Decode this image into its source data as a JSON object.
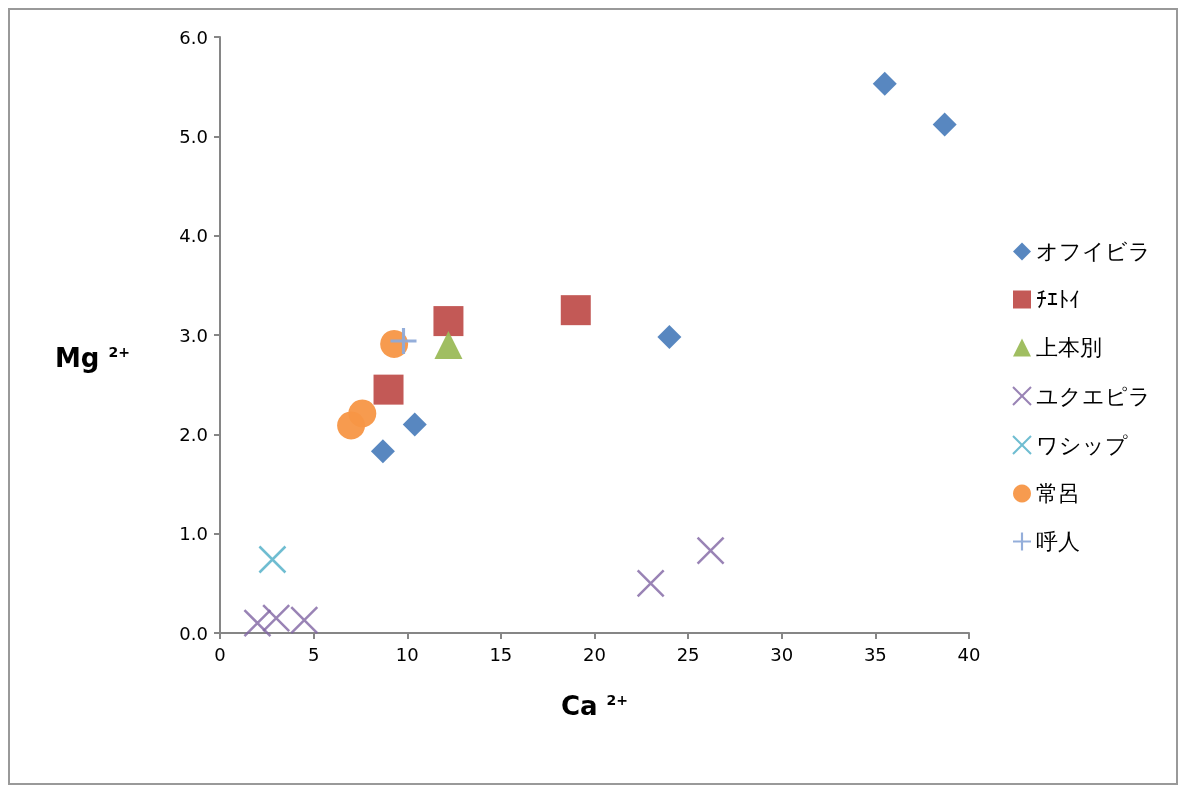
{
  "chart_data": {
    "type": "scatter",
    "xlabel": "Ca $^{2+}$",
    "ylabel": "Mg $^{2+}$",
    "xlim": [
      0,
      40
    ],
    "xticks": [
      0,
      5,
      10,
      15,
      20,
      25,
      30,
      35,
      40
    ],
    "ylim": [
      0,
      6
    ],
    "yticks": [
      {
        "value": 0,
        "label": "0.0"
      },
      {
        "value": 1,
        "label": "1.0"
      },
      {
        "value": 2,
        "label": "2.0"
      },
      {
        "value": 3,
        "label": "3.0"
      },
      {
        "value": 4,
        "label": "4.0"
      },
      {
        "value": 5,
        "label": "5.0"
      },
      {
        "value": 6,
        "label": "6.0"
      }
    ],
    "grid": false,
    "legend": "right",
    "series": [
      {
        "name": "オフイビラ",
        "color": "#4f81bd",
        "marker": "diamond",
        "x": [
          35.5,
          38.7,
          24.0,
          10.4,
          8.7
        ],
        "values": [
          5.53,
          5.12,
          2.98,
          2.1,
          1.83
        ]
      },
      {
        "name": "ﾁｴﾄｲ",
        "color": "#c0504d",
        "marker": "square",
        "x": [
          12.2,
          19.0,
          9.0
        ],
        "values": [
          3.14,
          3.25,
          2.45
        ]
      },
      {
        "name": "上本別",
        "color": "#9bbb59",
        "marker": "triangle",
        "x": [
          12.2
        ],
        "values": [
          2.9
        ]
      },
      {
        "name": "ユクエピラ",
        "color": "#8064a2",
        "marker": "cross",
        "x": [
          26.2,
          23.0,
          2.0,
          3.0,
          4.5
        ],
        "values": [
          0.83,
          0.5,
          0.1,
          0.15,
          0.13
        ]
      },
      {
        "name": "ワシップ",
        "color": "#4bacc6",
        "marker": "cross",
        "x": [
          2.8
        ],
        "values": [
          0.74
        ]
      },
      {
        "name": "常呂",
        "color": "#f79646",
        "marker": "circle",
        "x": [
          9.3,
          7.6,
          7.0
        ],
        "values": [
          2.91,
          2.21,
          2.09
        ]
      },
      {
        "name": "呼人",
        "color": "#8eaad8",
        "marker": "plus",
        "x": [
          9.8
        ],
        "values": [
          2.94
        ]
      }
    ]
  }
}
